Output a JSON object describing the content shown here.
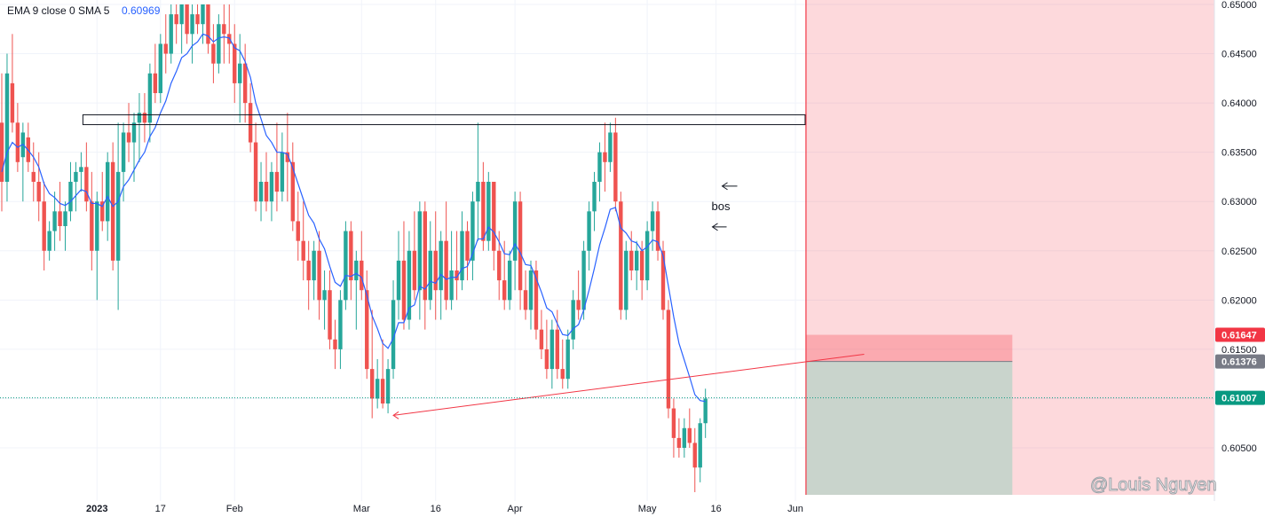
{
  "legend": {
    "indicator_label": "EMA 9 close 0 SMA 5",
    "indicator_value": "0.60969"
  },
  "watermark": "@Louis Nguyen",
  "annotations": {
    "bos": "bos"
  },
  "colors": {
    "up": "#26a69a",
    "down": "#ef5350",
    "ema": "#2962ff",
    "stop_zone": "#f7525f",
    "target_zone": "#787b86",
    "trendline": "#f23645",
    "price_badge": "#089981",
    "stop_badge": "#f23645",
    "entry_badge": "#787b86"
  },
  "chart_data": {
    "type": "candlestick",
    "y_axis": {
      "ylim": [
        0.6005,
        0.65
      ],
      "ticks": [
        "0.60500",
        "0.61000",
        "0.61500",
        "0.62000",
        "0.62500",
        "0.63000",
        "0.63500",
        "0.64000",
        "0.64500",
        "0.65000"
      ],
      "tick_values": [
        0.605,
        0.61,
        0.615,
        0.62,
        0.625,
        0.63,
        0.635,
        0.64,
        0.645,
        0.65
      ]
    },
    "x_axis": {
      "ticks": [
        {
          "label": "2023",
          "index": 18,
          "bold": true
        },
        {
          "label": "17",
          "index": 30,
          "bold": false
        },
        {
          "label": "Feb",
          "index": 44,
          "bold": false
        },
        {
          "label": "Mar",
          "index": 68,
          "bold": false
        },
        {
          "label": "16",
          "index": 82,
          "bold": false
        },
        {
          "label": "Apr",
          "index": 97,
          "bold": false
        },
        {
          "label": "May",
          "index": 122,
          "bold": false
        },
        {
          "label": "16",
          "index": 135,
          "bold": false
        },
        {
          "label": "Jun",
          "index": 150,
          "bold": false
        }
      ]
    },
    "badges": [
      {
        "label": "0.61647",
        "value": 0.61647,
        "kind": "stop"
      },
      {
        "label": "0.61376",
        "value": 0.61376,
        "kind": "entry"
      },
      {
        "label": "0.61007",
        "value": 0.61007,
        "kind": "price"
      }
    ],
    "axis_tick_extra": {
      "label": "0.61500",
      "value": 0.615
    },
    "ema_value": 0.60969,
    "ohlc": [
      [
        0.638,
        0.643,
        0.629,
        0.632
      ],
      [
        0.632,
        0.645,
        0.63,
        0.643
      ],
      [
        0.642,
        0.647,
        0.637,
        0.638
      ],
      [
        0.638,
        0.64,
        0.633,
        0.634
      ],
      [
        0.6345,
        0.638,
        0.63,
        0.637
      ],
      [
        0.6365,
        0.638,
        0.633,
        0.634
      ],
      [
        0.633,
        0.636,
        0.63,
        0.632
      ],
      [
        0.632,
        0.635,
        0.628,
        0.63
      ],
      [
        0.63,
        0.632,
        0.623,
        0.625
      ],
      [
        0.625,
        0.628,
        0.624,
        0.627
      ],
      [
        0.627,
        0.631,
        0.625,
        0.629
      ],
      [
        0.629,
        0.632,
        0.626,
        0.6275
      ],
      [
        0.6275,
        0.63,
        0.625,
        0.629
      ],
      [
        0.629,
        0.634,
        0.628,
        0.632
      ],
      [
        0.632,
        0.634,
        0.629,
        0.633
      ],
      [
        0.633,
        0.635,
        0.631,
        0.6335
      ],
      [
        0.6335,
        0.636,
        0.629,
        0.63
      ],
      [
        0.63,
        0.633,
        0.623,
        0.625
      ],
      [
        0.625,
        0.631,
        0.62,
        0.63
      ],
      [
        0.63,
        0.633,
        0.627,
        0.628
      ],
      [
        0.628,
        0.635,
        0.626,
        0.634
      ],
      [
        0.634,
        0.636,
        0.623,
        0.624
      ],
      [
        0.624,
        0.638,
        0.619,
        0.633
      ],
      [
        0.633,
        0.638,
        0.63,
        0.637
      ],
      [
        0.637,
        0.64,
        0.634,
        0.636
      ],
      [
        0.636,
        0.639,
        0.632,
        0.638
      ],
      [
        0.638,
        0.641,
        0.634,
        0.639
      ],
      [
        0.639,
        0.641,
        0.636,
        0.638
      ],
      [
        0.638,
        0.644,
        0.636,
        0.643
      ],
      [
        0.643,
        0.646,
        0.64,
        0.641
      ],
      [
        0.641,
        0.647,
        0.64,
        0.646
      ],
      [
        0.646,
        0.649,
        0.643,
        0.645
      ],
      [
        0.645,
        0.65,
        0.644,
        0.649
      ],
      [
        0.649,
        0.65,
        0.646,
        0.648
      ],
      [
        0.648,
        0.65,
        0.645,
        0.65
      ],
      [
        0.65,
        0.65,
        0.646,
        0.647
      ],
      [
        0.647,
        0.65,
        0.644,
        0.649
      ],
      [
        0.649,
        0.65,
        0.647,
        0.648
      ],
      [
        0.648,
        0.65,
        0.646,
        0.65
      ],
      [
        0.65,
        0.65,
        0.645,
        0.646
      ],
      [
        0.646,
        0.648,
        0.642,
        0.644
      ],
      [
        0.644,
        0.649,
        0.643,
        0.648
      ],
      [
        0.648,
        0.65,
        0.644,
        0.647
      ],
      [
        0.647,
        0.65,
        0.644,
        0.646
      ],
      [
        0.646,
        0.648,
        0.64,
        0.642
      ],
      [
        0.642,
        0.647,
        0.638,
        0.644
      ],
      [
        0.644,
        0.646,
        0.638,
        0.64
      ],
      [
        0.64,
        0.642,
        0.635,
        0.636
      ],
      [
        0.636,
        0.638,
        0.629,
        0.63
      ],
      [
        0.63,
        0.634,
        0.628,
        0.632
      ],
      [
        0.632,
        0.635,
        0.629,
        0.63
      ],
      [
        0.63,
        0.634,
        0.628,
        0.633
      ],
      [
        0.633,
        0.638,
        0.629,
        0.631
      ],
      [
        0.631,
        0.637,
        0.63,
        0.635
      ],
      [
        0.635,
        0.639,
        0.63,
        0.634
      ],
      [
        0.634,
        0.636,
        0.627,
        0.628
      ],
      [
        0.628,
        0.631,
        0.624,
        0.626
      ],
      [
        0.626,
        0.63,
        0.622,
        0.624
      ],
      [
        0.624,
        0.626,
        0.619,
        0.622
      ],
      [
        0.622,
        0.626,
        0.62,
        0.625
      ],
      [
        0.625,
        0.627,
        0.618,
        0.62
      ],
      [
        0.62,
        0.623,
        0.617,
        0.621
      ],
      [
        0.621,
        0.623,
        0.615,
        0.616
      ],
      [
        0.616,
        0.618,
        0.613,
        0.615
      ],
      [
        0.615,
        0.621,
        0.613,
        0.62
      ],
      [
        0.62,
        0.628,
        0.619,
        0.627
      ],
      [
        0.627,
        0.628,
        0.62,
        0.622
      ],
      [
        0.622,
        0.625,
        0.617,
        0.624
      ],
      [
        0.624,
        0.627,
        0.62,
        0.621
      ],
      [
        0.621,
        0.623,
        0.612,
        0.613
      ],
      [
        0.613,
        0.619,
        0.608,
        0.61
      ],
      [
        0.61,
        0.614,
        0.609,
        0.612
      ],
      [
        0.612,
        0.616,
        0.609,
        0.6095
      ],
      [
        0.6095,
        0.614,
        0.6085,
        0.613
      ],
      [
        0.613,
        0.622,
        0.612,
        0.62
      ],
      [
        0.62,
        0.627,
        0.618,
        0.624
      ],
      [
        0.624,
        0.628,
        0.617,
        0.618
      ],
      [
        0.618,
        0.627,
        0.617,
        0.625
      ],
      [
        0.625,
        0.629,
        0.62,
        0.621
      ],
      [
        0.621,
        0.63,
        0.618,
        0.629
      ],
      [
        0.629,
        0.63,
        0.617,
        0.62
      ],
      [
        0.62,
        0.628,
        0.619,
        0.625
      ],
      [
        0.625,
        0.629,
        0.618,
        0.621
      ],
      [
        0.621,
        0.627,
        0.618,
        0.626
      ],
      [
        0.626,
        0.63,
        0.619,
        0.62
      ],
      [
        0.62,
        0.627,
        0.619,
        0.623
      ],
      [
        0.623,
        0.627,
        0.62,
        0.622
      ],
      [
        0.622,
        0.629,
        0.621,
        0.627
      ],
      [
        0.627,
        0.628,
        0.622,
        0.624
      ],
      [
        0.624,
        0.631,
        0.622,
        0.63
      ],
      [
        0.63,
        0.638,
        0.626,
        0.632
      ],
      [
        0.632,
        0.634,
        0.625,
        0.626
      ],
      [
        0.626,
        0.633,
        0.625,
        0.632
      ],
      [
        0.632,
        0.632,
        0.623,
        0.625
      ],
      [
        0.625,
        0.627,
        0.62,
        0.622
      ],
      [
        0.622,
        0.626,
        0.619,
        0.62
      ],
      [
        0.62,
        0.625,
        0.619,
        0.624
      ],
      [
        0.624,
        0.631,
        0.621,
        0.63
      ],
      [
        0.63,
        0.631,
        0.619,
        0.621
      ],
      [
        0.621,
        0.623,
        0.618,
        0.619
      ],
      [
        0.619,
        0.624,
        0.617,
        0.623
      ],
      [
        0.623,
        0.624,
        0.616,
        0.617
      ],
      [
        0.617,
        0.619,
        0.614,
        0.615
      ],
      [
        0.615,
        0.618,
        0.612,
        0.613
      ],
      [
        0.613,
        0.618,
        0.611,
        0.617
      ],
      [
        0.617,
        0.619,
        0.612,
        0.613
      ],
      [
        0.613,
        0.616,
        0.611,
        0.612
      ],
      [
        0.612,
        0.617,
        0.611,
        0.616
      ],
      [
        0.616,
        0.621,
        0.615,
        0.62
      ],
      [
        0.62,
        0.623,
        0.618,
        0.619
      ],
      [
        0.619,
        0.626,
        0.618,
        0.625
      ],
      [
        0.625,
        0.63,
        0.623,
        0.629
      ],
      [
        0.629,
        0.633,
        0.627,
        0.632
      ],
      [
        0.632,
        0.636,
        0.63,
        0.635
      ],
      [
        0.635,
        0.638,
        0.631,
        0.634
      ],
      [
        0.634,
        0.638,
        0.633,
        0.637
      ],
      [
        0.637,
        0.6385,
        0.629,
        0.63
      ],
      [
        0.63,
        0.631,
        0.618,
        0.619
      ],
      [
        0.619,
        0.626,
        0.618,
        0.625
      ],
      [
        0.625,
        0.627,
        0.622,
        0.623
      ],
      [
        0.623,
        0.626,
        0.621,
        0.625
      ],
      [
        0.625,
        0.626,
        0.62,
        0.622
      ],
      [
        0.622,
        0.628,
        0.621,
        0.627
      ],
      [
        0.627,
        0.63,
        0.625,
        0.629
      ],
      [
        0.629,
        0.63,
        0.624,
        0.625
      ],
      [
        0.625,
        0.626,
        0.618,
        0.619
      ],
      [
        0.619,
        0.62,
        0.608,
        0.609
      ],
      [
        0.609,
        0.61,
        0.604,
        0.606
      ],
      [
        0.606,
        0.608,
        0.604,
        0.605
      ],
      [
        0.605,
        0.608,
        0.604,
        0.607
      ],
      [
        0.607,
        0.609,
        0.605,
        0.6055
      ],
      [
        0.6055,
        0.607,
        0.6005,
        0.603
      ],
      [
        0.603,
        0.608,
        0.6015,
        0.6075
      ],
      [
        0.6075,
        0.611,
        0.606,
        0.61
      ]
    ],
    "ema": [
      0.633,
      0.635,
      0.636,
      0.6355,
      0.6358,
      0.6352,
      0.6345,
      0.6335,
      0.6318,
      0.6308,
      0.6304,
      0.6298,
      0.6296,
      0.63,
      0.6306,
      0.6312,
      0.631,
      0.6298,
      0.6298,
      0.6295,
      0.6305,
      0.6295,
      0.63,
      0.6315,
      0.6322,
      0.6332,
      0.6342,
      0.635,
      0.6366,
      0.6375,
      0.639,
      0.6402,
      0.642,
      0.6432,
      0.6446,
      0.645,
      0.6458,
      0.6462,
      0.647,
      0.6468,
      0.6462,
      0.6466,
      0.6467,
      0.6466,
      0.6456,
      0.6453,
      0.6442,
      0.6426,
      0.64,
      0.6384,
      0.6367,
      0.636,
      0.635,
      0.635,
      0.6348,
      0.6334,
      0.6318,
      0.6302,
      0.6286,
      0.6278,
      0.6262,
      0.6252,
      0.6234,
      0.6218,
      0.6214,
      0.6225,
      0.6224,
      0.6227,
      0.6223,
      0.6205,
      0.6184,
      0.6171,
      0.6156,
      0.6151,
      0.6161,
      0.6177,
      0.6177,
      0.6192,
      0.6195,
      0.6214,
      0.6211,
      0.6219,
      0.6217,
      0.6226,
      0.6221,
      0.6223,
      0.6223,
      0.6232,
      0.6234,
      0.6247,
      0.6262,
      0.6262,
      0.6274,
      0.6269,
      0.6259,
      0.6247,
      0.6246,
      0.6257,
      0.6248,
      0.6236,
      0.6235,
      0.6222,
      0.6208,
      0.6192,
      0.6188,
      0.6176,
      0.6165,
      0.6164,
      0.6171,
      0.6175,
      0.619,
      0.621,
      0.6232,
      0.6256,
      0.6273,
      0.6292,
      0.6294,
      0.6273,
      0.6268,
      0.626,
      0.6258,
      0.625,
      0.6254,
      0.6261,
      0.6259,
      0.6245,
      0.6214,
      0.6183,
      0.6156,
      0.6139,
      0.6122,
      0.6104,
      0.6098,
      0.6097
    ],
    "boxes": {
      "resistance_rect": {
        "y_top": 0.6388,
        "y_bottom": 0.6378,
        "x_start": 15,
        "x_end": 151
      },
      "stop_zone": {
        "y_top": 0.61647,
        "y_bottom": 0.61376,
        "x_start": 152,
        "x_end": 191
      },
      "target_zone": {
        "y_top": 0.61376,
        "y_bottom": 0.6005,
        "x_start": 152,
        "x_end": 191
      },
      "red_right_area": {
        "y_top": 0.65,
        "y_bottom": 0.6005,
        "x_start": 152,
        "x_end": 228
      }
    },
    "trendline": {
      "x1": 74,
      "y1": 0.6083,
      "x2": 163,
      "y2": 0.6145
    },
    "bos": {
      "x": 137,
      "y": 0.6285
    }
  }
}
